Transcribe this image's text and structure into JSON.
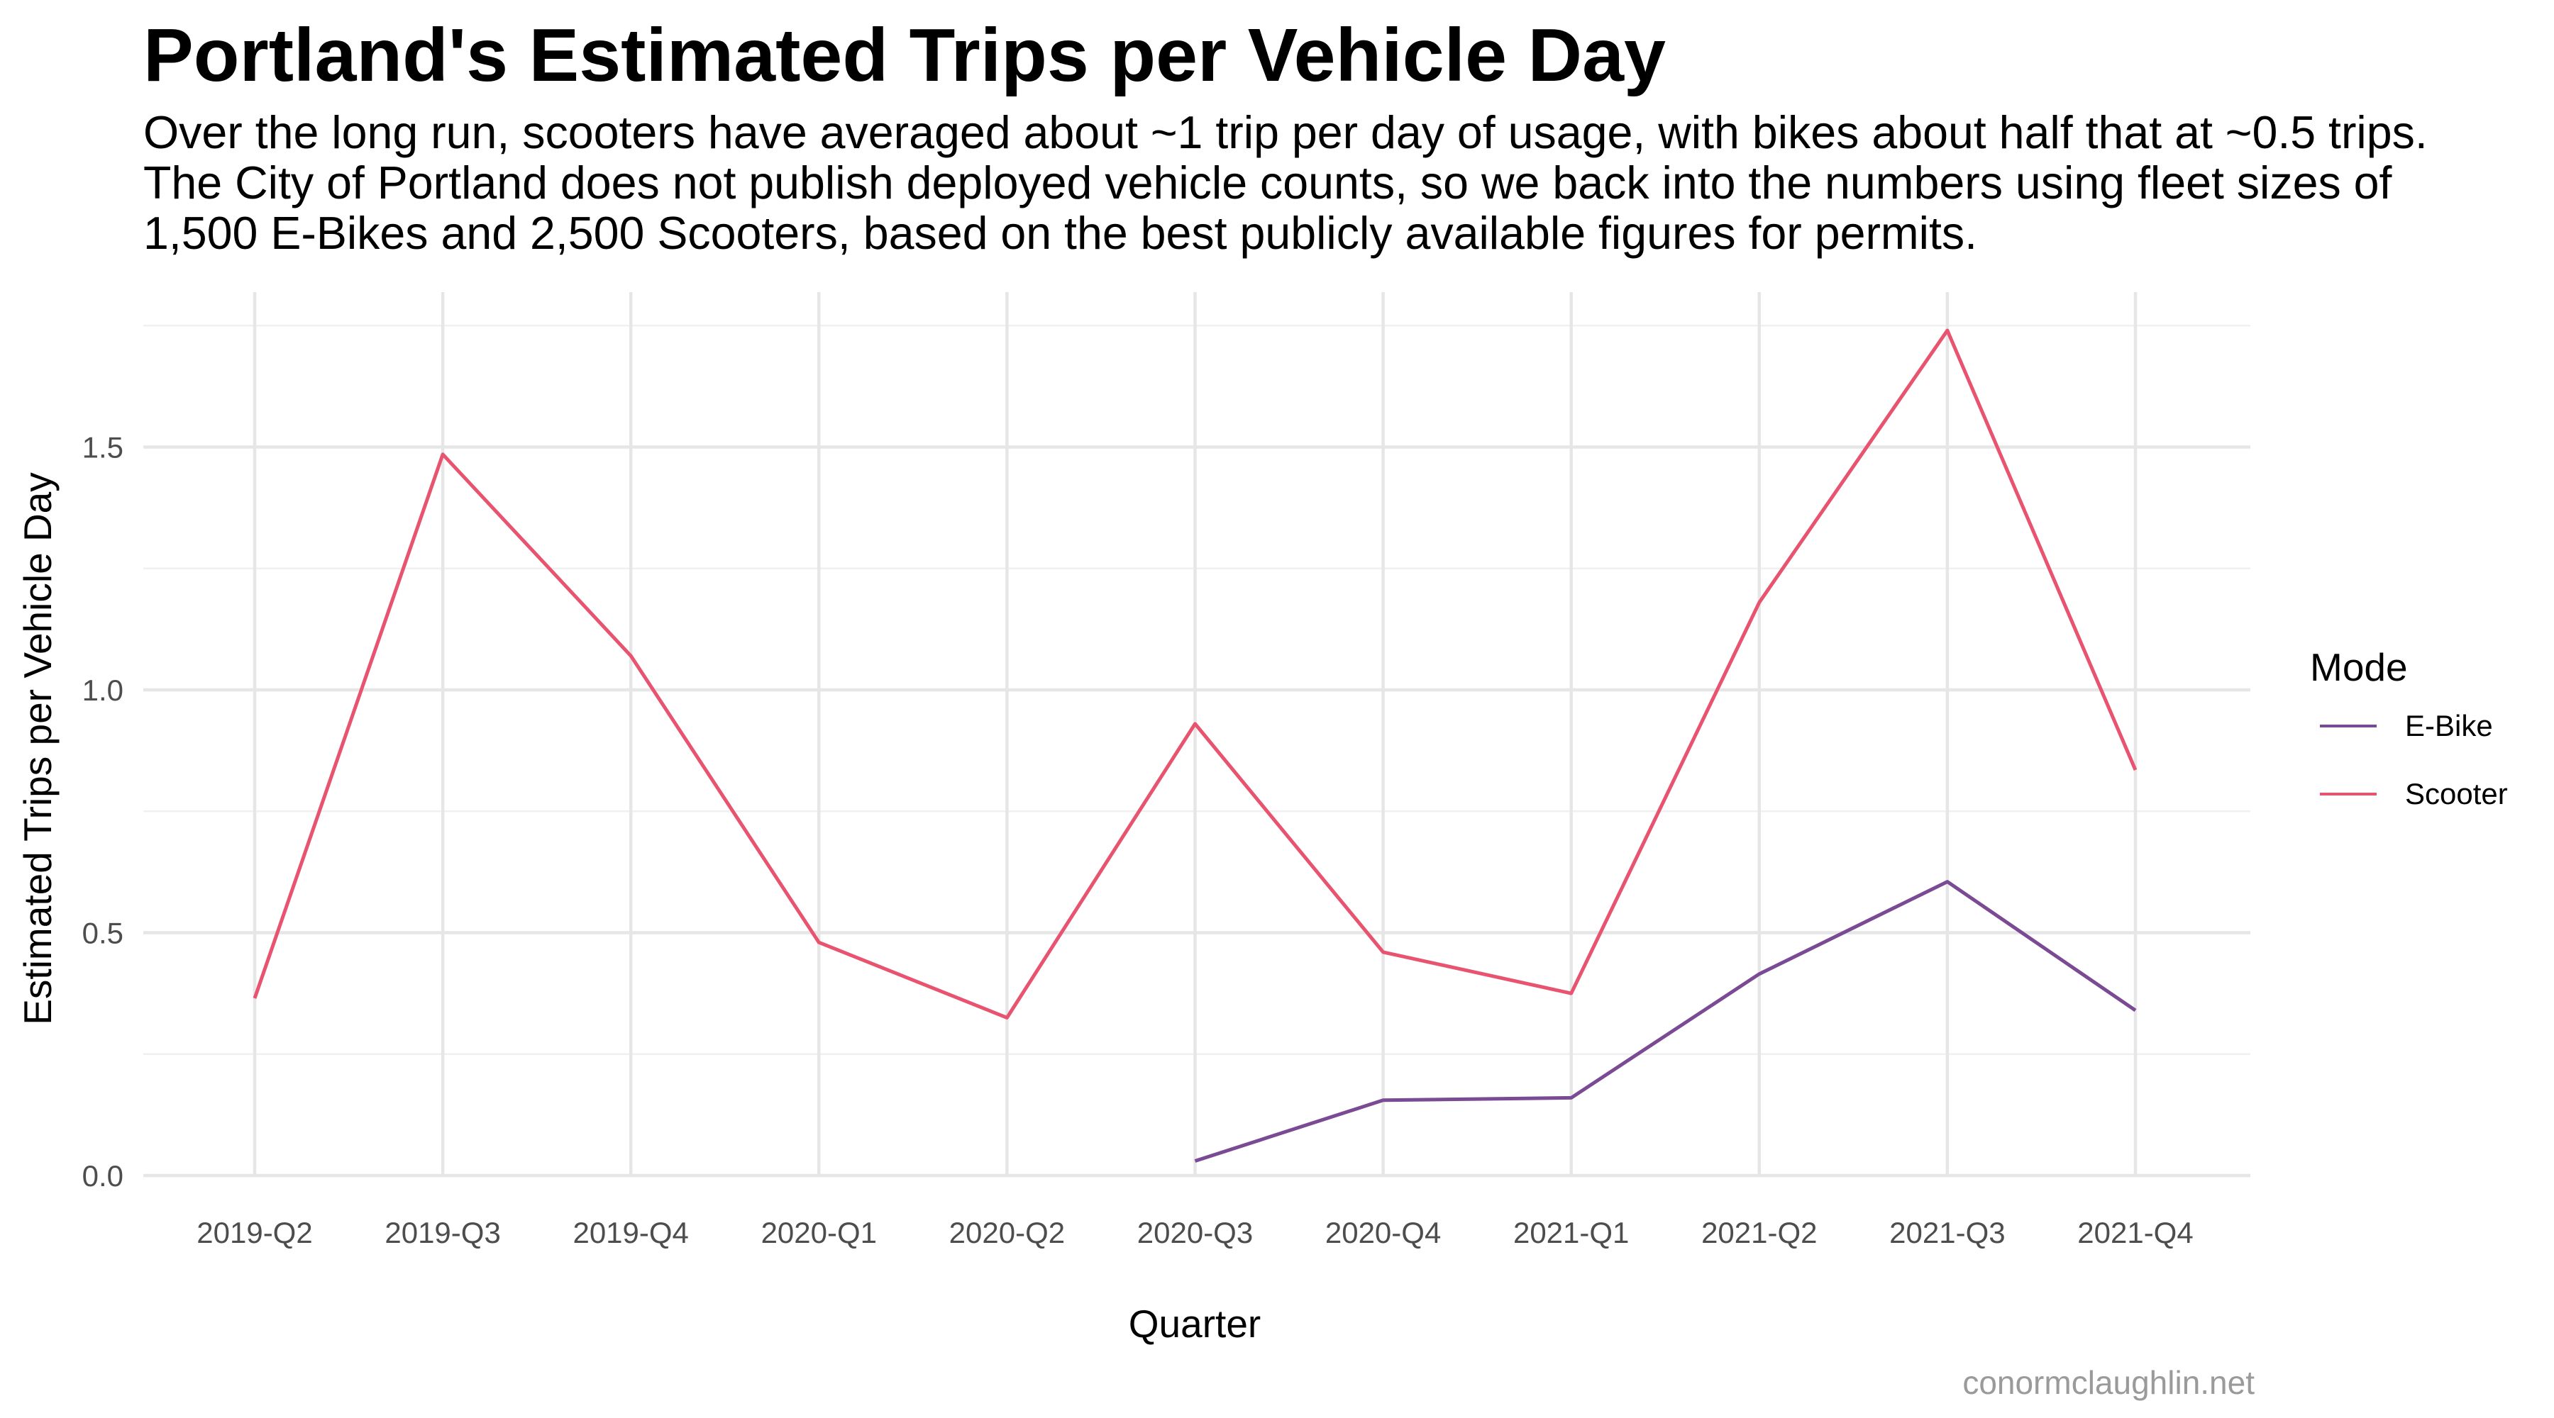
{
  "chart_data": {
    "type": "line",
    "title": "Portland's Estimated Trips per Vehicle Day",
    "subtitle": "Over the long run, scooters have averaged about ~1 trip per day of usage, with bikes about half that at ~0.5 trips.\nThe City of Portland does not publish deployed vehicle counts, so we back into the numbers using fleet sizes of\n1,500 E-Bikes and 2,500 Scooters, based on the best publicly available figures for permits.",
    "xlabel": "Quarter",
    "ylabel": "Estimated Trips per Vehicle Day",
    "caption": "conormclaughlin.net",
    "categories": [
      "2019-Q2",
      "2019-Q3",
      "2019-Q4",
      "2020-Q1",
      "2020-Q2",
      "2020-Q3",
      "2020-Q4",
      "2021-Q1",
      "2021-Q2",
      "2021-Q3",
      "2021-Q4"
    ],
    "yticks": [
      "0.0",
      "0.5",
      "1.0",
      "1.5"
    ],
    "ylim": [
      0,
      1.75
    ],
    "grid": true,
    "legend": {
      "title": "Mode",
      "position": "right"
    },
    "series": [
      {
        "name": "E-Bike",
        "color": "#7b4a94",
        "values": [
          null,
          null,
          null,
          null,
          null,
          0.03,
          0.155,
          0.16,
          0.415,
          0.605,
          0.34
        ]
      },
      {
        "name": "Scooter",
        "color": "#e8546f",
        "values": [
          0.365,
          1.485,
          1.07,
          0.48,
          0.325,
          0.93,
          0.46,
          0.375,
          1.18,
          1.74,
          0.835
        ]
      }
    ]
  }
}
